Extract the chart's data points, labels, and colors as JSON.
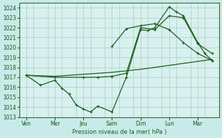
{
  "xlabel": "Pression niveau de la mer( hPa )",
  "background_color": "#c8eae8",
  "plot_bg_color": "#d8f0ee",
  "line_color": "#1a5c1a",
  "grid_color": "#a8ccc8",
  "ylim": [
    1013,
    1024.5
  ],
  "yticks": [
    1013,
    1014,
    1015,
    1016,
    1017,
    1018,
    1019,
    1020,
    1021,
    1022,
    1023,
    1024
  ],
  "day_labels": [
    "Ven",
    "Mer",
    "Jeu",
    "Sam",
    "Dim",
    "Lun",
    "Mar"
  ],
  "day_positions": [
    0,
    4,
    8,
    12,
    16,
    20,
    24
  ],
  "xmin": -1,
  "xmax": 27,
  "series1": {
    "x": [
      0,
      2,
      4,
      5,
      6,
      7,
      8,
      9,
      10,
      12,
      14,
      16,
      17,
      18,
      20,
      21,
      22,
      24,
      25,
      26
    ],
    "y": [
      1017.2,
      1016.2,
      1016.7,
      1015.9,
      1015.3,
      1014.2,
      1013.8,
      1013.5,
      1014.1,
      1013.5,
      1017.0,
      1021.8,
      1021.7,
      1022.0,
      1024.1,
      1023.6,
      1023.2,
      1020.5,
      1019.4,
      1018.7
    ]
  },
  "series2": {
    "x": [
      0,
      4,
      8,
      10,
      12,
      14,
      16,
      18,
      20,
      22,
      24,
      26
    ],
    "y": [
      1017.2,
      1017.0,
      1017.0,
      1017.0,
      1017.1,
      1017.4,
      1022.0,
      1021.8,
      1023.2,
      1023.0,
      1020.4,
      1019.4
    ]
  },
  "series3": {
    "x": [
      0,
      4,
      8,
      12,
      16,
      20,
      22,
      24,
      26
    ],
    "y": [
      1017.2,
      1017.1,
      1017.3,
      1017.5,
      1017.8,
      1018.2,
      1018.4,
      1018.6,
      1018.8
    ]
  },
  "series4": {
    "x": [
      12,
      14,
      16,
      18,
      20,
      22,
      24,
      26
    ],
    "y": [
      1020.1,
      1021.9,
      1022.2,
      1022.4,
      1021.8,
      1020.5,
      1019.4,
      1018.7
    ]
  }
}
